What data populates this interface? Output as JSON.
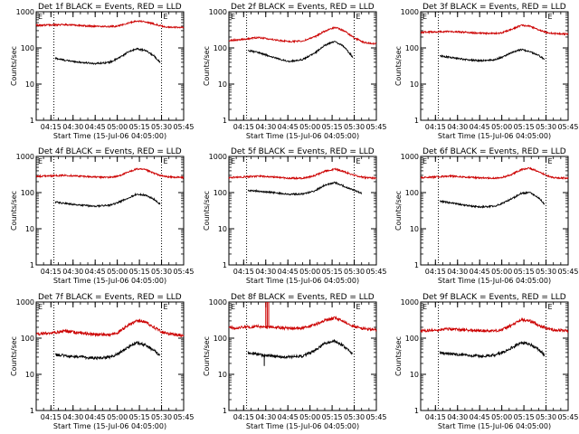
{
  "chart_data": [
    {
      "type": "line",
      "title": "Det 1f BLACK = Events, RED = LLD",
      "xlabel": "Start Time (15-Jul-06 04:05:00)",
      "ylabel": "Counts/sec",
      "y_scale": "log",
      "ylim": [
        1,
        1000
      ],
      "y_ticks": [
        1,
        10,
        100,
        1000
      ],
      "y_tick_labels": [
        "1",
        "10",
        "100",
        "1000"
      ],
      "x_tick_labels": [
        "04:15",
        "04:30",
        "04:45",
        "05:00",
        "05:15",
        "05:30",
        "05:45"
      ],
      "x_tick_minutes": [
        10,
        25,
        40,
        55,
        70,
        85,
        100
      ],
      "xlim_minutes": [
        0,
        100
      ],
      "vlines_minutes": [
        12,
        85
      ],
      "corner_markers": [
        "E",
        "E"
      ],
      "series": [
        {
          "name": "Events",
          "color": "#000000",
          "x_minutes": [
            13,
            20,
            30,
            40,
            50,
            55,
            62,
            68,
            74,
            80,
            84
          ],
          "values": [
            52,
            45,
            40,
            37,
            40,
            50,
            75,
            95,
            85,
            60,
            40
          ]
        },
        {
          "name": "LLD",
          "color": "#cc0000",
          "x_minutes": [
            0,
            10,
            20,
            30,
            40,
            50,
            55,
            62,
            68,
            74,
            80,
            85,
            90,
            100
          ],
          "values": [
            420,
            430,
            440,
            415,
            395,
            390,
            400,
            480,
            560,
            530,
            460,
            400,
            370,
            370
          ]
        }
      ]
    },
    {
      "type": "line",
      "title": "Det 2f BLACK = Events, RED = LLD",
      "xlabel": "Start Time (15-Jul-06 04:05:00)",
      "ylabel": "Counts/sec",
      "y_scale": "log",
      "ylim": [
        1,
        1000
      ],
      "y_ticks": [
        1,
        10,
        100,
        1000
      ],
      "y_tick_labels": [
        "1",
        "10",
        "100",
        "1000"
      ],
      "x_tick_labels": [
        "04:15",
        "04:30",
        "04:45",
        "05:00",
        "05:15",
        "05:30",
        "05:45"
      ],
      "x_tick_minutes": [
        10,
        25,
        40,
        55,
        70,
        85,
        100
      ],
      "xlim_minutes": [
        0,
        100
      ],
      "vlines_minutes": [
        12,
        85
      ],
      "corner_markers": [
        "E",
        "E"
      ],
      "series": [
        {
          "name": "Events",
          "color": "#000000",
          "x_minutes": [
            13,
            20,
            30,
            40,
            50,
            58,
            65,
            72,
            78,
            84
          ],
          "values": [
            85,
            75,
            55,
            42,
            48,
            70,
            120,
            150,
            110,
            55
          ]
        },
        {
          "name": "LLD",
          "color": "#cc0000",
          "x_minutes": [
            0,
            10,
            20,
            30,
            40,
            50,
            58,
            65,
            72,
            78,
            85,
            92,
            100
          ],
          "values": [
            160,
            175,
            195,
            170,
            150,
            155,
            200,
            290,
            370,
            300,
            190,
            140,
            130
          ]
        }
      ]
    },
    {
      "type": "line",
      "title": "Det 3f BLACK = Events, RED = LLD",
      "xlabel": "Start Time (15-Jul-06 04:05:00)",
      "ylabel": "Counts/sec",
      "y_scale": "log",
      "ylim": [
        1,
        1000
      ],
      "y_ticks": [
        1,
        10,
        100,
        1000
      ],
      "y_tick_labels": [
        "1",
        "10",
        "100",
        "1000"
      ],
      "x_tick_labels": [
        "04:15",
        "04:30",
        "04:45",
        "05:00",
        "05:15",
        "05:30",
        "05:45"
      ],
      "x_tick_minutes": [
        10,
        25,
        40,
        55,
        70,
        85,
        100
      ],
      "xlim_minutes": [
        0,
        100
      ],
      "vlines_minutes": [
        12,
        85
      ],
      "corner_markers": [
        "E",
        "E"
      ],
      "series": [
        {
          "name": "Events",
          "color": "#000000",
          "x_minutes": [
            13,
            20,
            30,
            40,
            50,
            55,
            62,
            68,
            74,
            80,
            84
          ],
          "values": [
            60,
            55,
            48,
            44,
            47,
            55,
            75,
            90,
            80,
            62,
            48
          ]
        },
        {
          "name": "LLD",
          "color": "#cc0000",
          "x_minutes": [
            0,
            10,
            20,
            30,
            40,
            50,
            55,
            62,
            68,
            74,
            80,
            85,
            90,
            100
          ],
          "values": [
            270,
            280,
            285,
            270,
            255,
            250,
            260,
            330,
            420,
            400,
            320,
            270,
            250,
            240
          ]
        }
      ]
    },
    {
      "type": "line",
      "title": "Det 4f BLACK = Events, RED = LLD",
      "xlabel": "Start Time (15-Jul-06 04:05:00)",
      "ylabel": "Counts/sec",
      "y_scale": "log",
      "ylim": [
        1,
        1000
      ],
      "y_ticks": [
        1,
        10,
        100,
        1000
      ],
      "y_tick_labels": [
        "1",
        "10",
        "100",
        "1000"
      ],
      "x_tick_labels": [
        "04:15",
        "04:30",
        "04:45",
        "05:00",
        "05:15",
        "05:30",
        "05:45"
      ],
      "x_tick_minutes": [
        10,
        25,
        40,
        55,
        70,
        85,
        100
      ],
      "xlim_minutes": [
        0,
        100
      ],
      "vlines_minutes": [
        12,
        85
      ],
      "corner_markers": [
        "E",
        "E"
      ],
      "series": [
        {
          "name": "Events",
          "color": "#000000",
          "x_minutes": [
            13,
            20,
            30,
            40,
            50,
            55,
            62,
            68,
            74,
            80,
            84
          ],
          "values": [
            55,
            50,
            45,
            42,
            45,
            52,
            70,
            90,
            85,
            65,
            48
          ]
        },
        {
          "name": "LLD",
          "color": "#cc0000",
          "x_minutes": [
            0,
            10,
            20,
            30,
            40,
            50,
            55,
            62,
            68,
            74,
            80,
            85,
            90,
            100
          ],
          "values": [
            280,
            290,
            300,
            285,
            270,
            265,
            280,
            360,
            450,
            430,
            340,
            290,
            270,
            260
          ]
        }
      ]
    },
    {
      "type": "line",
      "title": "Det 5f BLACK = Events, RED = LLD",
      "xlabel": "Start Time (15-Jul-06 04:05:00)",
      "ylabel": "Counts/sec",
      "y_scale": "log",
      "ylim": [
        1,
        1000
      ],
      "y_ticks": [
        1,
        10,
        100,
        1000
      ],
      "y_tick_labels": [
        "1",
        "10",
        "100",
        "1000"
      ],
      "x_tick_labels": [
        "04:15",
        "04:30",
        "04:45",
        "05:00",
        "05:15",
        "05:30",
        "05:45"
      ],
      "x_tick_minutes": [
        10,
        25,
        40,
        55,
        70,
        85,
        100
      ],
      "xlim_minutes": [
        0,
        100
      ],
      "vlines_minutes": [
        12,
        85
      ],
      "corner_markers": [
        "E",
        "E"
      ],
      "series": [
        {
          "name": "Events",
          "color": "#000000",
          "x_minutes": [
            13,
            20,
            30,
            40,
            50,
            58,
            65,
            72,
            78,
            84,
            90
          ],
          "values": [
            115,
            110,
            100,
            90,
            92,
            110,
            160,
            190,
            150,
            120,
            95
          ]
        },
        {
          "name": "LLD",
          "color": "#cc0000",
          "x_minutes": [
            0,
            10,
            20,
            30,
            40,
            50,
            58,
            65,
            72,
            78,
            85,
            92,
            100
          ],
          "values": [
            260,
            270,
            285,
            270,
            250,
            250,
            290,
            390,
            450,
            380,
            300,
            260,
            250
          ]
        }
      ]
    },
    {
      "type": "line",
      "title": "Det 6f BLACK = Events, RED = LLD",
      "xlabel": "Start Time (15-Jul-06 04:05:00)",
      "ylabel": "Counts/sec",
      "y_scale": "log",
      "ylim": [
        1,
        1000
      ],
      "y_ticks": [
        1,
        10,
        100,
        1000
      ],
      "y_tick_labels": [
        "1",
        "10",
        "100",
        "1000"
      ],
      "x_tick_labels": [
        "04:15",
        "04:30",
        "04:45",
        "05:00",
        "05:15",
        "05:30",
        "05:45"
      ],
      "x_tick_minutes": [
        10,
        25,
        40,
        55,
        70,
        85,
        100
      ],
      "xlim_minutes": [
        0,
        100
      ],
      "vlines_minutes": [
        12,
        85
      ],
      "corner_markers": [
        "E",
        "E"
      ],
      "series": [
        {
          "name": "Events",
          "color": "#000000",
          "x_minutes": [
            13,
            20,
            30,
            40,
            50,
            55,
            62,
            68,
            74,
            80,
            84
          ],
          "values": [
            58,
            52,
            45,
            40,
            42,
            50,
            68,
            95,
            100,
            72,
            48
          ]
        },
        {
          "name": "LLD",
          "color": "#cc0000",
          "x_minutes": [
            0,
            10,
            20,
            30,
            40,
            50,
            55,
            62,
            68,
            74,
            80,
            85,
            90,
            100
          ],
          "values": [
            260,
            270,
            285,
            270,
            255,
            250,
            260,
            320,
            430,
            470,
            380,
            300,
            260,
            250
          ]
        }
      ]
    },
    {
      "type": "line",
      "title": "Det 7f BLACK = Events, RED = LLD",
      "xlabel": "Start Time (15-Jul-06 04:05:00)",
      "ylabel": "Counts/sec",
      "y_scale": "log",
      "ylim": [
        1,
        1000
      ],
      "y_ticks": [
        1,
        10,
        100,
        1000
      ],
      "y_tick_labels": [
        "1",
        "10",
        "100",
        "1000"
      ],
      "x_tick_labels": [
        "04:15",
        "04:30",
        "04:45",
        "05:00",
        "05:15",
        "05:30",
        "05:45"
      ],
      "x_tick_minutes": [
        10,
        25,
        40,
        55,
        70,
        85,
        100
      ],
      "xlim_minutes": [
        0,
        100
      ],
      "vlines_minutes": [
        12,
        85
      ],
      "corner_markers": [
        "E",
        "E"
      ],
      "series": [
        {
          "name": "Events",
          "color": "#000000",
          "x_minutes": [
            13,
            20,
            30,
            40,
            50,
            55,
            62,
            68,
            74,
            80,
            84
          ],
          "values": [
            35,
            33,
            30,
            28,
            30,
            36,
            55,
            75,
            65,
            45,
            33
          ]
        },
        {
          "name": "LLD",
          "color": "#cc0000",
          "x_minutes": [
            0,
            10,
            20,
            30,
            40,
            50,
            55,
            62,
            68,
            74,
            80,
            85,
            90,
            100
          ],
          "values": [
            130,
            140,
            155,
            140,
            125,
            125,
            140,
            220,
            310,
            280,
            200,
            150,
            130,
            120
          ]
        }
      ]
    },
    {
      "type": "line",
      "title": "Det 8f BLACK = Events, RED = LLD",
      "xlabel": "Start Time (15-Jul-06 04:05:00)",
      "ylabel": "Counts/sec",
      "y_scale": "log",
      "ylim": [
        1,
        1000
      ],
      "y_ticks": [
        1,
        10,
        100,
        1000
      ],
      "y_tick_labels": [
        "1",
        "10",
        "100",
        "1000"
      ],
      "x_tick_labels": [
        "04:15",
        "04:30",
        "04:45",
        "05:00",
        "05:15",
        "05:30",
        "05:45"
      ],
      "x_tick_minutes": [
        10,
        25,
        40,
        55,
        70,
        85,
        100
      ],
      "xlim_minutes": [
        0,
        100
      ],
      "vlines_minutes": [
        12,
        85
      ],
      "corner_markers": [
        "E",
        "E"
      ],
      "spikes": [
        {
          "series": "LLD",
          "x_minutes": 25,
          "values": [
            200,
            1000
          ]
        },
        {
          "series": "LLD",
          "x_minutes": 26,
          "values": [
            200,
            1000
          ]
        },
        {
          "series": "LLD",
          "x_minutes": 27,
          "values": [
            200,
            1000
          ]
        },
        {
          "series": "Events",
          "x_minutes": 24,
          "values": [
            35,
            17
          ]
        }
      ],
      "series": [
        {
          "name": "Events",
          "color": "#000000",
          "x_minutes": [
            13,
            20,
            30,
            40,
            50,
            58,
            65,
            72,
            78,
            84
          ],
          "values": [
            40,
            35,
            32,
            30,
            32,
            45,
            70,
            85,
            60,
            35
          ]
        },
        {
          "name": "LLD",
          "color": "#cc0000",
          "x_minutes": [
            0,
            10,
            20,
            30,
            40,
            50,
            58,
            65,
            72,
            78,
            85,
            92,
            100
          ],
          "values": [
            190,
            200,
            210,
            200,
            190,
            190,
            230,
            310,
            360,
            290,
            210,
            180,
            170
          ]
        }
      ]
    },
    {
      "type": "line",
      "title": "Det 9f BLACK = Events, RED = LLD",
      "xlabel": "Start Time (15-Jul-06 04:05:00)",
      "ylabel": "Counts/sec",
      "y_scale": "log",
      "ylim": [
        1,
        1000
      ],
      "y_ticks": [
        1,
        10,
        100,
        1000
      ],
      "y_tick_labels": [
        "1",
        "10",
        "100",
        "1000"
      ],
      "x_tick_labels": [
        "04:15",
        "04:30",
        "04:45",
        "05:00",
        "05:15",
        "05:30",
        "05:45"
      ],
      "x_tick_minutes": [
        10,
        25,
        40,
        55,
        70,
        85,
        100
      ],
      "xlim_minutes": [
        0,
        100
      ],
      "vlines_minutes": [
        12,
        85
      ],
      "corner_markers": [
        "E",
        "E"
      ],
      "series": [
        {
          "name": "Events",
          "color": "#000000",
          "x_minutes": [
            13,
            20,
            30,
            40,
            50,
            55,
            62,
            68,
            74,
            80,
            84
          ],
          "values": [
            40,
            37,
            34,
            32,
            34,
            40,
            55,
            75,
            68,
            48,
            34
          ]
        },
        {
          "name": "LLD",
          "color": "#cc0000",
          "x_minutes": [
            0,
            10,
            20,
            30,
            40,
            50,
            55,
            62,
            68,
            74,
            80,
            85,
            90,
            100
          ],
          "values": [
            160,
            170,
            180,
            170,
            160,
            160,
            170,
            230,
            320,
            300,
            230,
            190,
            170,
            160
          ]
        }
      ]
    }
  ]
}
